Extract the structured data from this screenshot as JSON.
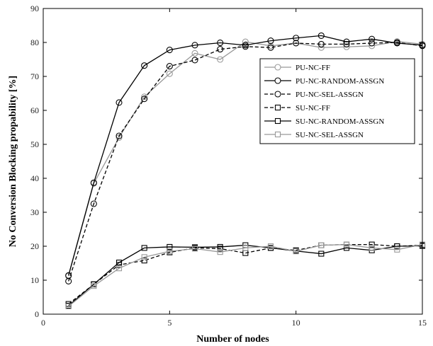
{
  "chart_data": {
    "type": "line",
    "title": "",
    "xlabel": "Number of nodes",
    "ylabel": "No Conversion Blocking propability [%]",
    "xlim": [
      0,
      15
    ],
    "ylim": [
      0,
      90
    ],
    "xticks": [
      0,
      5,
      10,
      15
    ],
    "yticks": [
      0,
      10,
      20,
      30,
      40,
      50,
      60,
      70,
      80,
      90
    ],
    "grid": false,
    "legend_position": "right",
    "x": [
      1,
      2,
      3,
      4,
      5,
      6,
      7,
      8,
      9,
      10,
      11,
      12,
      13,
      14,
      15
    ],
    "series": [
      {
        "name": "PU-NC-FF",
        "color": "#999999",
        "dash": "solid",
        "marker": "circle",
        "values": [
          11.2,
          38.5,
          52.0,
          64.0,
          70.8,
          76.8,
          75.0,
          80.2,
          79.0,
          79.8,
          78.5,
          78.7,
          79.0,
          80.3,
          79.5
        ]
      },
      {
        "name": "PU-NC-RANDOM-ASSGN",
        "color": "#000000",
        "dash": "solid",
        "marker": "circle",
        "values": [
          11.4,
          38.7,
          62.3,
          73.2,
          77.8,
          79.2,
          79.9,
          79.2,
          80.5,
          81.3,
          82.0,
          80.2,
          81.0,
          79.8,
          79.2
        ]
      },
      {
        "name": "PU-NC-SEL-ASSGN",
        "color": "#000000",
        "dash": "dashed",
        "marker": "circle",
        "values": [
          9.7,
          32.5,
          52.5,
          63.4,
          73.0,
          74.8,
          78.0,
          78.8,
          78.5,
          79.8,
          79.5,
          79.5,
          79.8,
          80.0,
          79.0
        ]
      },
      {
        "name": "SU-NC-FF",
        "color": "#000000",
        "dash": "dashed",
        "marker": "square",
        "values": [
          3.0,
          8.8,
          14.5,
          15.8,
          18.2,
          19.5,
          19.3,
          18.0,
          19.5,
          18.8,
          20.3,
          20.5,
          20.5,
          20.0,
          20.3
        ]
      },
      {
        "name": "SU-NC-RANDOM-ASSGN",
        "color": "#000000",
        "dash": "solid",
        "marker": "square",
        "values": [
          2.5,
          8.8,
          15.2,
          19.5,
          19.8,
          19.7,
          19.8,
          20.3,
          19.5,
          18.6,
          17.8,
          19.5,
          18.8,
          20.0,
          20.1
        ]
      },
      {
        "name": "SU-NC-SEL-ASSGN",
        "color": "#999999",
        "dash": "solid",
        "marker": "square",
        "values": [
          2.3,
          8.3,
          13.5,
          16.8,
          18.5,
          19.3,
          18.3,
          19.5,
          20.0,
          18.5,
          20.3,
          20.5,
          19.5,
          19.0,
          20.5
        ]
      }
    ]
  }
}
